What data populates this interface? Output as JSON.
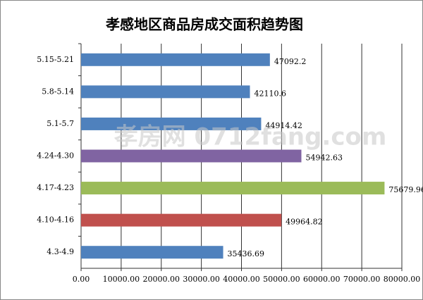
{
  "chart_data": {
    "type": "hbar",
    "title": "孝感地区商品房成交面积趋势图",
    "watermark": "孝房网 0712fang.com",
    "categories": [
      "5.15-5.21",
      "5.8-5.14",
      "5.1-5.7",
      "4.24-4.30",
      "4.17-4.23",
      "4.10-4.16",
      "4.3-4.9"
    ],
    "values": [
      47092.2,
      42110.6,
      44914.42,
      54942.63,
      75679.96,
      49964.82,
      35436.69
    ],
    "colors": [
      "#4f81bd",
      "#4f81bd",
      "#4f81bd",
      "#8064a2",
      "#9bbb59",
      "#c0504d",
      "#4f81bd"
    ],
    "xlim": [
      0,
      80000
    ],
    "xticks": [
      {
        "value": 0,
        "label": "0.00"
      },
      {
        "value": 10000,
        "label": "10000.00"
      },
      {
        "value": 20000,
        "label": "20000.00"
      },
      {
        "value": 30000,
        "label": "30000.00"
      },
      {
        "value": 40000,
        "label": "40000.00"
      },
      {
        "value": 50000,
        "label": "50000.00"
      },
      {
        "value": 60000,
        "label": "60000.00"
      },
      {
        "value": 70000,
        "label": "70000.00"
      },
      {
        "value": 80000,
        "label": "80000.00"
      }
    ],
    "grid": true
  }
}
